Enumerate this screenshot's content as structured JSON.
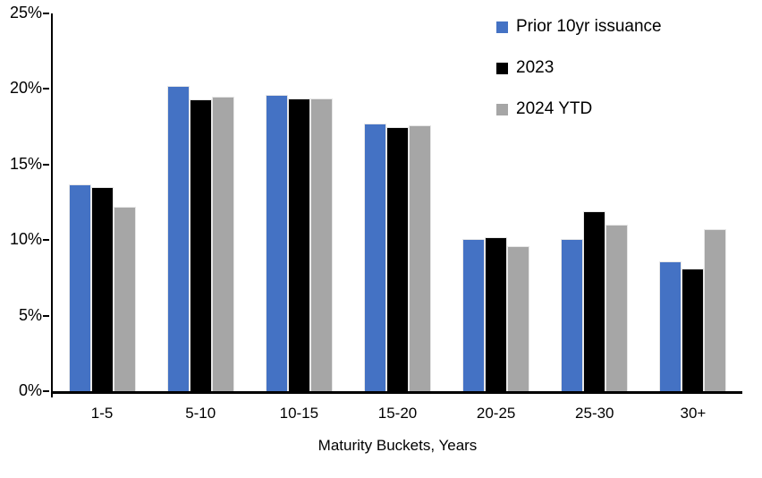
{
  "chart_data": {
    "type": "bar",
    "title": "",
    "xlabel": "Maturity Buckets, Years",
    "ylabel": "",
    "ylim": [
      0,
      25
    ],
    "yticks": [
      0,
      5,
      10,
      15,
      20,
      25
    ],
    "ytick_labels": [
      "0%",
      "5%",
      "10%",
      "15%",
      "20%",
      "25%"
    ],
    "grid": false,
    "legend_position": "top-right-inside",
    "categories": [
      "1-5",
      "5-10",
      "10-15",
      "15-20",
      "20-25",
      "25-30",
      "30+"
    ],
    "series": [
      {
        "name": "Prior 10yr issuance",
        "color": "#4472C4",
        "values": [
          13.7,
          20.2,
          19.6,
          17.7,
          10.1,
          10.1,
          8.6
        ]
      },
      {
        "name": "2023",
        "color": "#000000",
        "values": [
          13.5,
          19.3,
          19.4,
          17.5,
          10.2,
          11.9,
          8.1
        ]
      },
      {
        "name": "2024 YTD",
        "color": "#A6A6A6",
        "values": [
          12.2,
          19.5,
          19.4,
          17.6,
          9.6,
          11.0,
          10.7
        ]
      }
    ],
    "colors": {
      "axis": "#000000",
      "background": "#FFFFFF",
      "bar_border": "#E7E7E7"
    }
  }
}
